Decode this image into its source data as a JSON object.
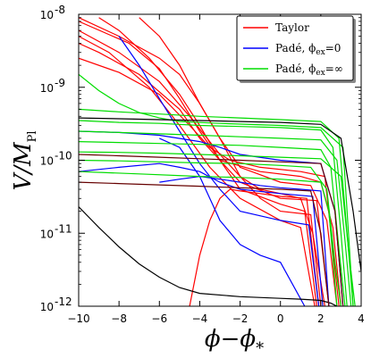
{
  "chart_data": {
    "type": "line",
    "title": "",
    "xlabel": "ϕ−ϕ",
    "xlabel_sub": "*",
    "ylabel": "V/M",
    "ylabel_sub": "Pl",
    "xlim": [
      -10,
      4
    ],
    "ylim": [
      1e-12,
      1e-08
    ],
    "yscale": "log",
    "grid": false,
    "legend_position": "top-right",
    "x_ticks": [
      "−10",
      "−8",
      "−6",
      "−4",
      "−2",
      "0",
      "2",
      "4"
    ],
    "x_tick_values": [
      -10,
      -8,
      -6,
      -4,
      -2,
      0,
      2,
      4
    ],
    "y_ticks": [
      {
        "base": "10",
        "exp": "-12",
        "value": 1e-12
      },
      {
        "base": "10",
        "exp": "-11",
        "value": 1e-11
      },
      {
        "base": "10",
        "exp": "-10",
        "value": 1e-10
      },
      {
        "base": "10",
        "exp": "-9",
        "value": 1e-09
      },
      {
        "base": "10",
        "exp": "-8",
        "value": 1e-08
      }
    ],
    "legend": [
      {
        "label": "Taylor",
        "color": "#ff0000"
      },
      {
        "label": "Padé, ϕ",
        "sub": "ex",
        "suffix": "=0",
        "color": "#0000ff"
      },
      {
        "label": "Padé, ϕ",
        "sub": "ex",
        "suffix": "=∞",
        "color": "#00dd00"
      }
    ],
    "series": [
      {
        "color": "#ff0000",
        "x": [
          -10,
          -8,
          -6,
          -4.5,
          -3,
          -2,
          -1,
          0,
          1,
          1.6,
          2.2
        ],
        "y": [
          6e-09,
          3e-09,
          1.2e-09,
          4e-10,
          1.2e-10,
          6e-11,
          4e-11,
          3.5e-11,
          3e-11,
          1e-11,
          1e-12
        ]
      },
      {
        "color": "#ff0000",
        "x": [
          -10,
          -8,
          -6,
          -5,
          -4,
          -3,
          -2,
          0,
          1.5,
          2.3,
          2.8
        ],
        "y": [
          9e-09,
          5e-09,
          2.5e-09,
          1.5e-09,
          6e-10,
          2e-10,
          8e-11,
          5e-11,
          4.5e-11,
          1.5e-11,
          1e-12
        ]
      },
      {
        "color": "#ff0000",
        "x": [
          -10,
          -9,
          -7,
          -5,
          -4,
          -3,
          -1,
          1,
          2,
          2.6,
          3
        ],
        "y": [
          4e-09,
          3e-09,
          1.5e-09,
          5e-10,
          2e-10,
          1e-10,
          7e-11,
          6e-11,
          5e-11,
          1.2e-11,
          1e-12
        ]
      },
      {
        "color": "#ff0000",
        "x": [
          -9,
          -8,
          -6.5,
          -5,
          -4,
          -3,
          -2,
          0,
          1.2,
          1.8
        ],
        "y": [
          9e-09,
          6e-09,
          2.5e-09,
          8e-10,
          3e-10,
          1e-10,
          4e-11,
          2.5e-11,
          2e-11,
          1e-12
        ]
      },
      {
        "color": "#ff0000",
        "x": [
          -10,
          -7.5,
          -6,
          -5,
          -4,
          -3,
          -2,
          0,
          1.8,
          2.4
        ],
        "y": [
          8e-09,
          4e-09,
          1.8e-09,
          7e-10,
          2.5e-10,
          1e-10,
          5e-11,
          3e-11,
          2.8e-11,
          1e-12
        ]
      },
      {
        "color": "#ff0000",
        "x": [
          -7,
          -6,
          -5,
          -4,
          -3,
          -2,
          -1,
          0,
          1.5,
          2.0
        ],
        "y": [
          9e-09,
          5e-09,
          2e-09,
          6e-10,
          2e-10,
          6e-11,
          3e-11,
          2e-11,
          1.8e-11,
          1e-12
        ]
      },
      {
        "color": "#ff0000",
        "x": [
          -10,
          -8,
          -6,
          -4.5,
          -3.5,
          -2.5,
          -1,
          1,
          2.2,
          2.9
        ],
        "y": [
          2.5e-09,
          1.6e-09,
          8e-10,
          3e-10,
          1.5e-10,
          1e-10,
          8e-11,
          7e-11,
          6e-11,
          1e-12
        ]
      },
      {
        "color": "#ff0000",
        "x": [
          -10,
          -8.5,
          -6.5,
          -5,
          -3.5,
          -2,
          0,
          1,
          1.7
        ],
        "y": [
          5e-09,
          3e-09,
          1e-09,
          3e-10,
          8e-11,
          3e-11,
          1.5e-11,
          1.2e-11,
          1e-12
        ]
      },
      {
        "color": "#ff0000",
        "x": [
          -4.5,
          -4,
          -3.5,
          -3,
          -2.5,
          -2,
          -1,
          0,
          1.3,
          1.9
        ],
        "y": [
          1e-12,
          5e-12,
          1.5e-11,
          3e-11,
          4e-11,
          3.8e-11,
          3.5e-11,
          3.2e-11,
          3e-11,
          1e-12
        ]
      },
      {
        "color": "#0000ff",
        "x": [
          -6,
          -5,
          -4,
          -3,
          -2,
          -1,
          0,
          1,
          2,
          2.4
        ],
        "y": [
          5e-11,
          5.5e-11,
          6e-11,
          5.5e-11,
          5e-11,
          4.5e-11,
          4.2e-11,
          4e-11,
          3.8e-11,
          1e-12
        ]
      },
      {
        "color": "#0000ff",
        "x": [
          -10,
          -8,
          -6,
          -5,
          -4,
          -3,
          -2,
          0,
          1.6,
          2.1
        ],
        "y": [
          7e-11,
          8e-11,
          9e-11,
          8e-11,
          7e-11,
          5e-11,
          4e-11,
          3.5e-11,
          3.2e-11,
          1e-12
        ]
      },
      {
        "color": "#0000ff",
        "x": [
          -8,
          -7,
          -6,
          -5,
          -4,
          -3,
          -2,
          0,
          1.4,
          1.9
        ],
        "y": [
          5e-09,
          2e-09,
          7e-10,
          2.5e-10,
          9e-11,
          4e-11,
          2e-11,
          1.5e-11,
          1.3e-11,
          1e-12
        ]
      },
      {
        "color": "#0000ff",
        "x": [
          -6,
          -5,
          -4,
          -3.5,
          -3,
          -2,
          -1,
          0,
          1.2
        ],
        "y": [
          2e-10,
          1.5e-10,
          6e-11,
          3e-11,
          1.5e-11,
          7e-12,
          5e-12,
          4e-12,
          1e-12
        ]
      },
      {
        "color": "#0000ff",
        "x": [
          -10,
          -8,
          -6,
          -4,
          -3,
          -2,
          0,
          2,
          2.7,
          3.1
        ],
        "y": [
          2.5e-10,
          2.4e-10,
          2.2e-10,
          1.8e-10,
          1.5e-10,
          1.2e-10,
          1e-10,
          9e-11,
          2e-11,
          1e-12
        ]
      },
      {
        "color": "#00dd00",
        "x": [
          -10,
          -8,
          -6,
          -4,
          -2,
          0,
          2,
          2.6,
          3.0,
          3.3
        ],
        "y": [
          3.5e-10,
          3.3e-10,
          3.2e-10,
          3e-10,
          2.9e-10,
          2.8e-10,
          2.6e-10,
          1.5e-10,
          1e-11,
          1e-12
        ]
      },
      {
        "color": "#00dd00",
        "x": [
          -10,
          -8,
          -6,
          -4,
          -2,
          0,
          2,
          2.8,
          3.2,
          3.5
        ],
        "y": [
          2.5e-10,
          2.4e-10,
          2.3e-10,
          2.2e-10,
          2.1e-10,
          2e-10,
          1.9e-10,
          1e-10,
          8e-12,
          1e-12
        ]
      },
      {
        "color": "#00dd00",
        "x": [
          -10,
          -8,
          -6,
          -4,
          -2,
          0,
          2,
          2.5,
          2.9,
          3.2
        ],
        "y": [
          1.8e-10,
          1.75e-10,
          1.7e-10,
          1.65e-10,
          1.6e-10,
          1.5e-10,
          1.4e-10,
          8e-11,
          6e-12,
          1e-12
        ]
      },
      {
        "color": "#00dd00",
        "x": [
          -10,
          -8,
          -6,
          -4,
          -2,
          0,
          2,
          3.0,
          3.4,
          3.7
        ],
        "y": [
          1.3e-10,
          1.28e-10,
          1.25e-10,
          1.2e-10,
          1.15e-10,
          1.1e-10,
          1.05e-10,
          6e-11,
          5e-12,
          1e-12
        ]
      },
      {
        "color": "#00dd00",
        "x": [
          -10,
          -8,
          -6,
          -4,
          -2,
          0,
          1.5,
          2.3,
          2.7,
          3.0
        ],
        "y": [
          1e-10,
          9.8e-11,
          9.5e-11,
          9.2e-11,
          9e-11,
          8.5e-11,
          8e-11,
          4e-11,
          4e-12,
          1e-12
        ]
      },
      {
        "color": "#00dd00",
        "x": [
          -10,
          -9,
          -8,
          -7,
          -6,
          -5,
          -3,
          0,
          2,
          3.1,
          3.6
        ],
        "y": [
          1.5e-09,
          9e-10,
          6e-10,
          4.5e-10,
          3.8e-10,
          3.4e-10,
          3.2e-10,
          3e-10,
          2.8e-10,
          1.5e-10,
          1e-12
        ]
      },
      {
        "color": "#00dd00",
        "x": [
          -10,
          -8,
          -6,
          -4,
          -2,
          0,
          2,
          2.9,
          3.3,
          3.6
        ],
        "y": [
          5e-10,
          4.6e-10,
          4.3e-10,
          4e-10,
          3.8e-10,
          3.6e-10,
          3.4e-10,
          2e-10,
          1e-11,
          1e-12
        ]
      },
      {
        "color": "#00dd00",
        "x": [
          -10,
          -7,
          -4,
          -2,
          0,
          2,
          2.4,
          2.8
        ],
        "y": [
          7e-11,
          6.5e-11,
          6e-11,
          5.8e-11,
          5.5e-11,
          5e-11,
          2e-11,
          1e-12
        ]
      },
      {
        "color": "#000000",
        "x": [
          -10,
          -8,
          -6,
          -4,
          -2,
          0,
          2,
          3.0,
          3.6,
          4
        ],
        "y": [
          3.8e-10,
          3.7e-10,
          3.6e-10,
          3.5e-10,
          3.4e-10,
          3.3e-10,
          3.1e-10,
          2e-10,
          2e-11,
          3e-12
        ]
      },
      {
        "color": "#000000",
        "x": [
          -10,
          -9,
          -8,
          -7,
          -6,
          -5,
          -4,
          -2,
          0,
          1,
          2,
          2.5,
          2.8
        ],
        "y": [
          2.3e-11,
          1.2e-11,
          6.5e-12,
          3.8e-12,
          2.5e-12,
          1.8e-12,
          1.5e-12,
          1.35e-12,
          1.28e-12,
          1.25e-12,
          1.2e-12,
          1.1e-12,
          1e-12
        ]
      },
      {
        "color": "#660000",
        "x": [
          -10,
          -8,
          -6,
          -4,
          -2,
          0,
          1.5,
          2.0,
          2.4
        ],
        "y": [
          5e-11,
          4.8e-11,
          4.6e-11,
          4.4e-11,
          4.2e-11,
          4e-11,
          3.8e-11,
          1e-11,
          1e-12
        ]
      },
      {
        "color": "#660000",
        "x": [
          -10,
          -8,
          -6,
          -4,
          -2,
          0,
          2,
          2.7,
          3.1
        ],
        "y": [
          1.2e-10,
          1.15e-10,
          1.1e-10,
          1.05e-10,
          1e-10,
          9.5e-11,
          9e-11,
          2e-11,
          1e-12
        ]
      }
    ]
  }
}
